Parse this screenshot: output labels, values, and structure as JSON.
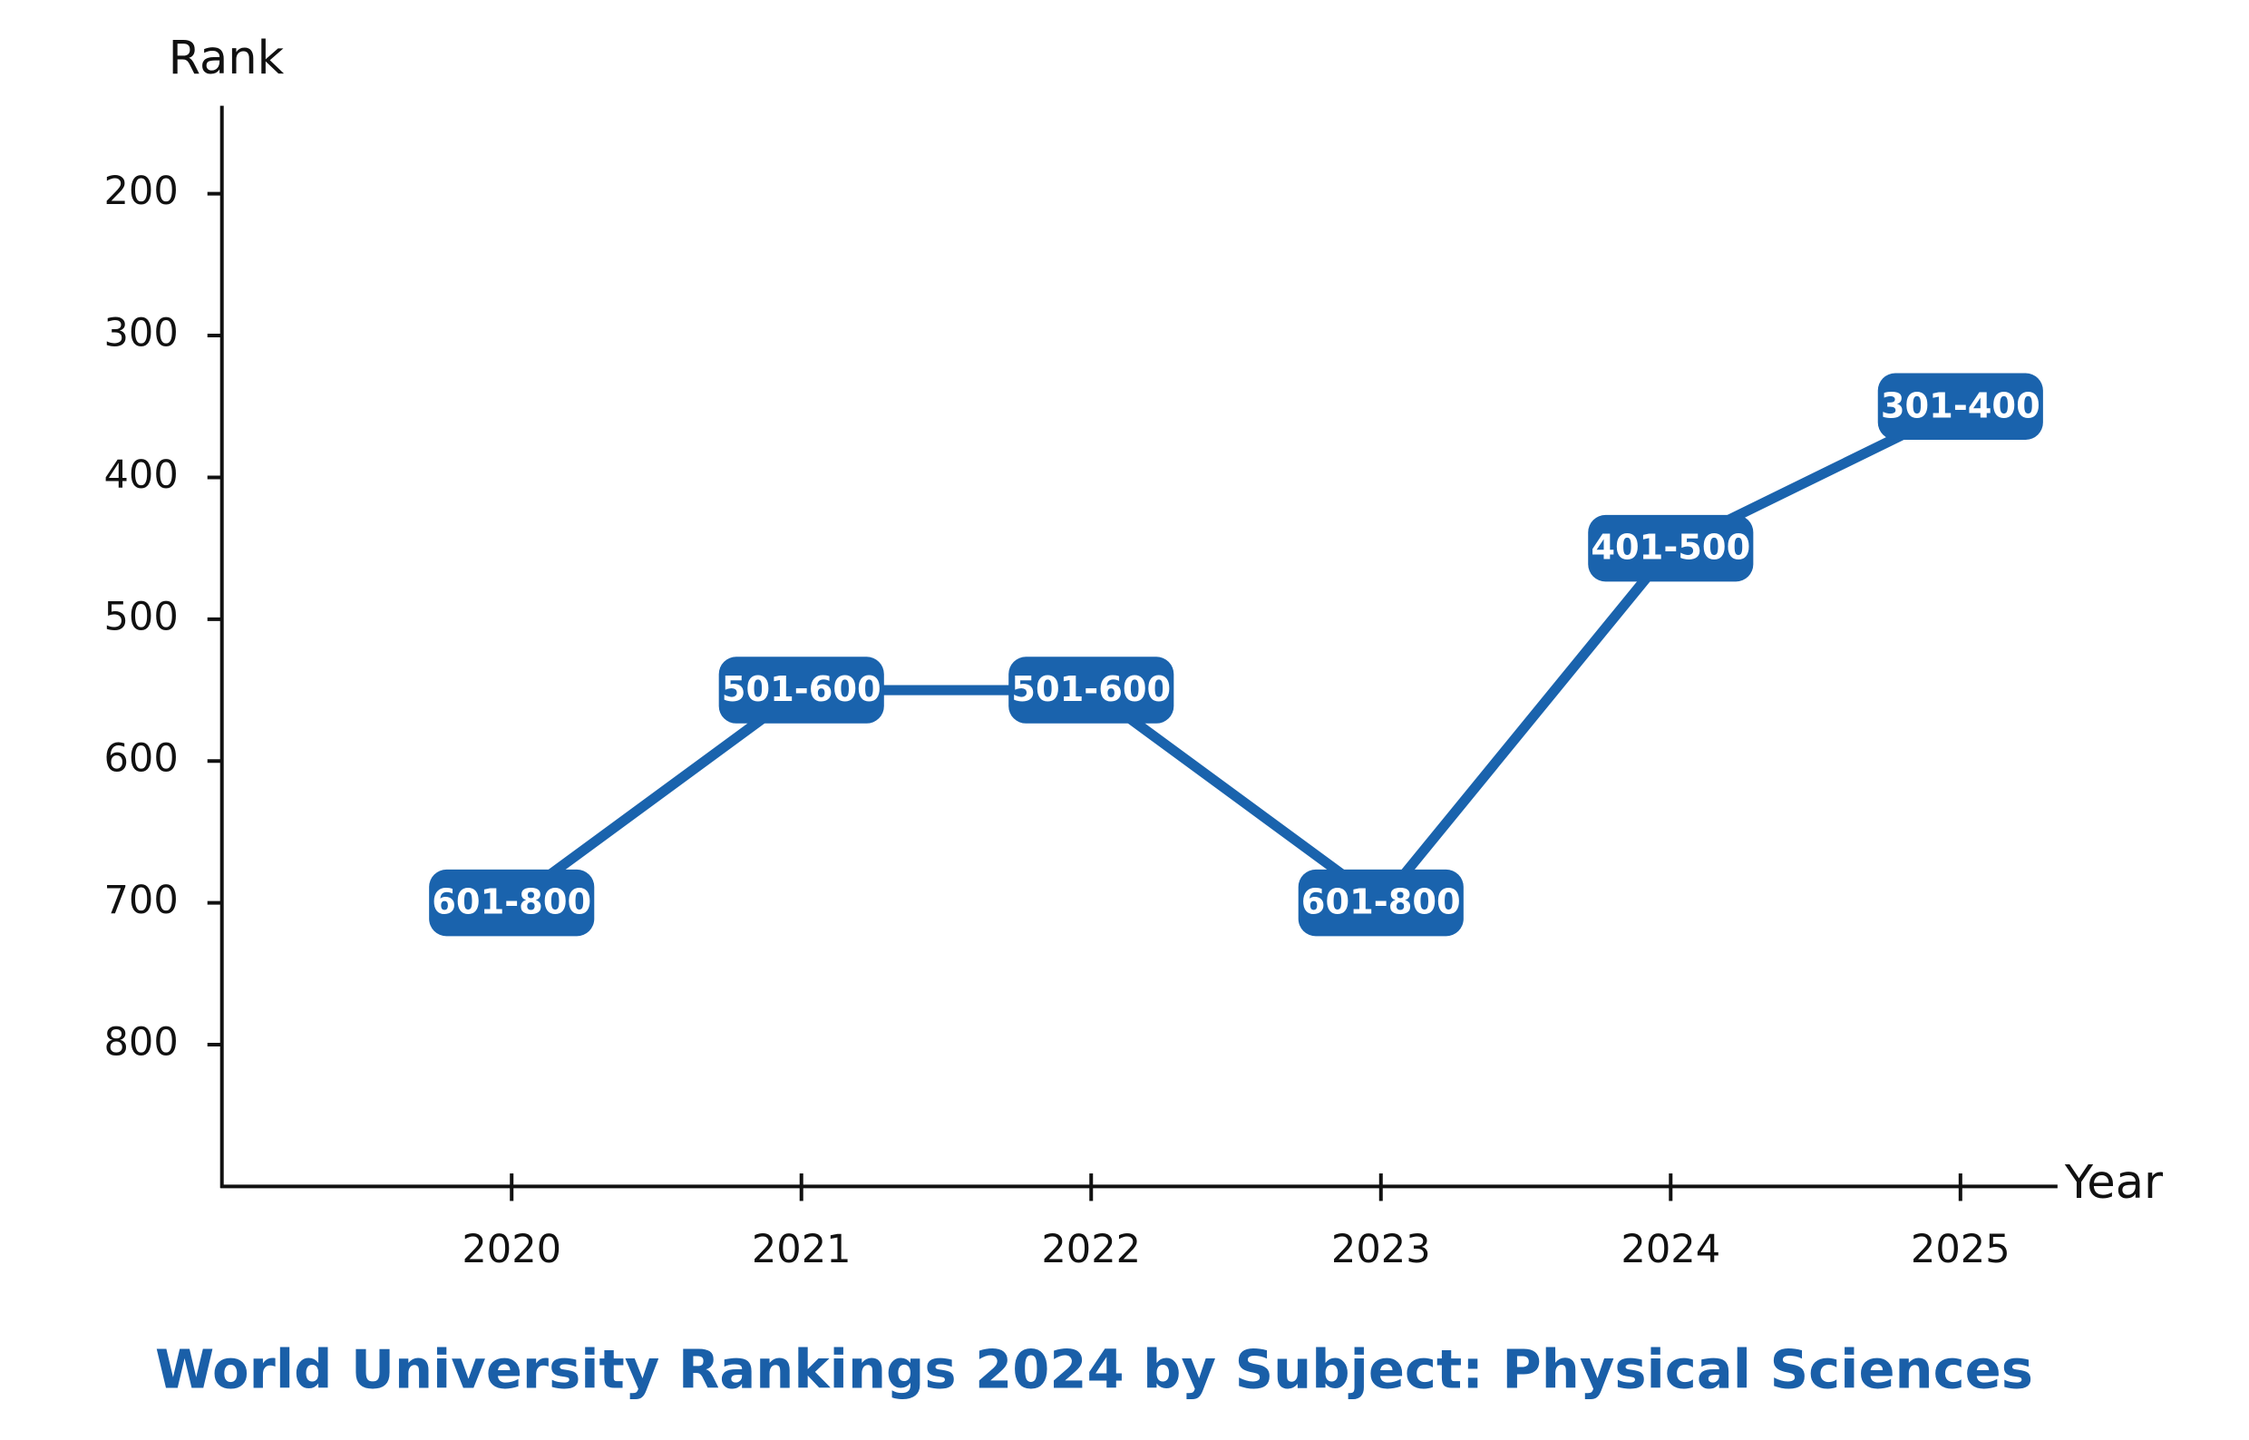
{
  "chart_data": {
    "type": "line",
    "title": "World University Rankings 2024 by Subject: Physical Sciences",
    "y_label": "Rank",
    "x_label": "Year",
    "categories": [
      "2020",
      "2021",
      "2022",
      "2023",
      "2024",
      "2025"
    ],
    "values": [
      700,
      550,
      550,
      700,
      450,
      350
    ],
    "value_labels": [
      "601-800",
      "501-600",
      "501-600",
      "601-800",
      "401-500",
      "301-400"
    ],
    "color": "#1a63ad",
    "ylim": [
      900,
      140
    ],
    "yticks": [
      200,
      300,
      400,
      500,
      600,
      700,
      800
    ]
  }
}
